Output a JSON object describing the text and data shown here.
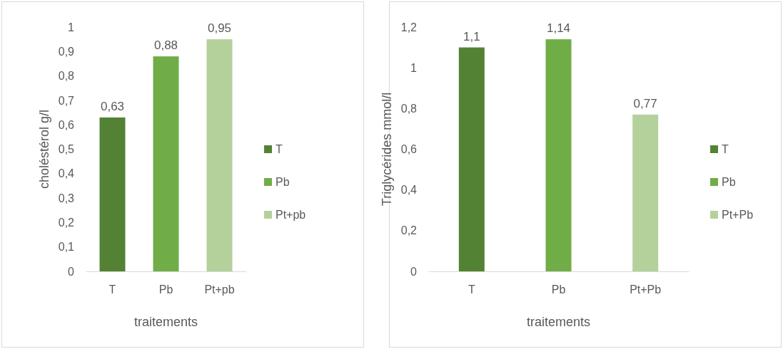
{
  "chart_data": [
    {
      "type": "bar",
      "categories": [
        "T",
        "Pb",
        "Pt+pb"
      ],
      "series": [
        {
          "name": "T",
          "color": "#548235",
          "values": [
            0.63,
            null,
            null
          ],
          "value_labels": [
            "0,63",
            null,
            null
          ]
        },
        {
          "name": "Pb",
          "color": "#70ad47",
          "values": [
            null,
            0.88,
            null
          ],
          "value_labels": [
            null,
            "0,88",
            null
          ]
        },
        {
          "name": "Pt+pb",
          "color": "#b4d19c",
          "values": [
            null,
            null,
            0.95
          ],
          "value_labels": [
            null,
            null,
            "0,95"
          ]
        }
      ],
      "xlabel": "traitements",
      "ylabel": "choléstérol g/l",
      "ylim": [
        0,
        1
      ],
      "yticks": [
        {
          "value": 0,
          "label": "0"
        },
        {
          "value": 0.1,
          "label": "0,1"
        },
        {
          "value": 0.2,
          "label": "0,2"
        },
        {
          "value": 0.3,
          "label": "0,3"
        },
        {
          "value": 0.4,
          "label": "0,4"
        },
        {
          "value": 0.5,
          "label": "0,5"
        },
        {
          "value": 0.6,
          "label": "0,6"
        },
        {
          "value": 0.7,
          "label": "0,7"
        },
        {
          "value": 0.8,
          "label": "0,8"
        },
        {
          "value": 0.9,
          "label": "0,9"
        },
        {
          "value": 1,
          "label": "1"
        }
      ],
      "grid": false,
      "legend": "right"
    },
    {
      "type": "bar",
      "categories": [
        "T",
        "Pb",
        "Pt+Pb"
      ],
      "series": [
        {
          "name": "T",
          "color": "#548235",
          "values": [
            1.1,
            null,
            null
          ],
          "value_labels": [
            "1,1",
            null,
            null
          ]
        },
        {
          "name": "Pb",
          "color": "#70ad47",
          "values": [
            null,
            1.14,
            null
          ],
          "value_labels": [
            null,
            "1,14",
            null
          ]
        },
        {
          "name": "Pt+Pb",
          "color": "#b4d19c",
          "values": [
            null,
            null,
            0.77
          ],
          "value_labels": [
            null,
            null,
            "0,77"
          ]
        }
      ],
      "xlabel": "traitements",
      "ylabel": "Triglycérides mmol/l",
      "ylim": [
        0,
        1.2
      ],
      "yticks": [
        {
          "value": 0,
          "label": "0"
        },
        {
          "value": 0.2,
          "label": "0,2"
        },
        {
          "value": 0.4,
          "label": "0,4"
        },
        {
          "value": 0.6,
          "label": "0,6"
        },
        {
          "value": 0.8,
          "label": "0,8"
        },
        {
          "value": 1,
          "label": "1"
        },
        {
          "value": 1.2,
          "label": "1,2"
        }
      ],
      "grid": false,
      "legend": "right"
    }
  ]
}
